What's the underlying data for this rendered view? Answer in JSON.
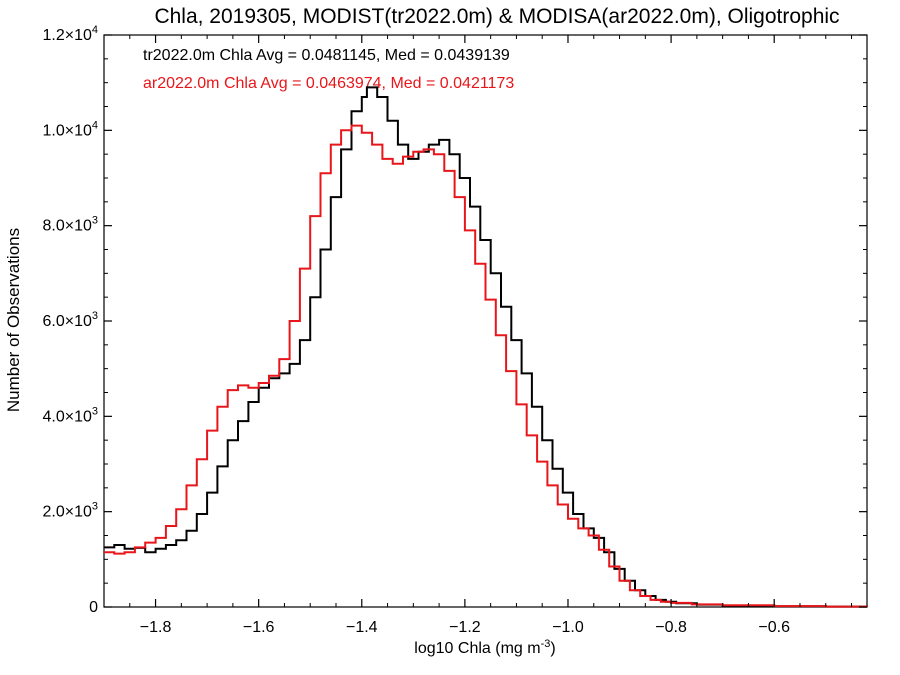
{
  "chart_data": {
    "type": "line",
    "title": "Chla, 2019305, MODIST(tr2022.0m) & MODISA(ar2022.0m), Oligotrophic",
    "xlabel": "log10 Chla (mg m",
    "xlabel_sup": "-3",
    "xlabel_end": ")",
    "ylabel": "Number of Observations",
    "xlim": [
      -1.9,
      -0.42
    ],
    "ylim": [
      0,
      12000
    ],
    "xticks": [
      {
        "value": -1.8,
        "label": "−1.8"
      },
      {
        "value": -1.6,
        "label": "−1.6"
      },
      {
        "value": -1.4,
        "label": "−1.4"
      },
      {
        "value": -1.2,
        "label": "−1.2"
      },
      {
        "value": -1.0,
        "label": "−1.0"
      },
      {
        "value": -0.8,
        "label": "−0.8"
      },
      {
        "value": -0.6,
        "label": "−0.6"
      }
    ],
    "yticks": [
      {
        "value": 0,
        "mant": "0",
        "exp": ""
      },
      {
        "value": 2000,
        "mant": "2.0×10",
        "exp": "3"
      },
      {
        "value": 4000,
        "mant": "4.0×10",
        "exp": "3"
      },
      {
        "value": 6000,
        "mant": "6.0×10",
        "exp": "3"
      },
      {
        "value": 8000,
        "mant": "8.0×10",
        "exp": "3"
      },
      {
        "value": 10000,
        "mant": "1.0×10",
        "exp": "4"
      },
      {
        "value": 12000,
        "mant": "1.2×10",
        "exp": "4"
      }
    ],
    "grid": false,
    "annotations": [
      {
        "text": "tr2022.0m Chla Avg = 0.0481145, Med = 0.0439139",
        "color": "#000000"
      },
      {
        "text": "ar2022.0m Chla Avg = 0.0463974, Med = 0.0421173",
        "color": "#e8161a"
      }
    ],
    "series": [
      {
        "color": "#000000",
        "points": [
          [
            -1.9,
            1250
          ],
          [
            -1.88,
            1300
          ],
          [
            -1.86,
            1220
          ],
          [
            -1.84,
            1240
          ],
          [
            -1.82,
            1150
          ],
          [
            -1.8,
            1220
          ],
          [
            -1.78,
            1300
          ],
          [
            -1.76,
            1400
          ],
          [
            -1.74,
            1600
          ],
          [
            -1.72,
            1950
          ],
          [
            -1.7,
            2400
          ],
          [
            -1.68,
            2950
          ],
          [
            -1.66,
            3500
          ],
          [
            -1.64,
            3900
          ],
          [
            -1.62,
            4300
          ],
          [
            -1.6,
            4600
          ],
          [
            -1.58,
            4800
          ],
          [
            -1.56,
            4900
          ],
          [
            -1.54,
            5100
          ],
          [
            -1.52,
            5600
          ],
          [
            -1.5,
            6500
          ],
          [
            -1.48,
            7500
          ],
          [
            -1.46,
            8600
          ],
          [
            -1.44,
            9600
          ],
          [
            -1.42,
            10400
          ],
          [
            -1.4,
            10700
          ],
          [
            -1.39,
            10900
          ],
          [
            -1.37,
            10700
          ],
          [
            -1.35,
            10200
          ],
          [
            -1.33,
            9700
          ],
          [
            -1.31,
            9400
          ],
          [
            -1.29,
            9550
          ],
          [
            -1.27,
            9700
          ],
          [
            -1.25,
            9800
          ],
          [
            -1.23,
            9500
          ],
          [
            -1.21,
            9000
          ],
          [
            -1.19,
            8400
          ],
          [
            -1.17,
            7700
          ],
          [
            -1.15,
            7000
          ],
          [
            -1.13,
            6300
          ],
          [
            -1.11,
            5600
          ],
          [
            -1.09,
            4900
          ],
          [
            -1.07,
            4200
          ],
          [
            -1.05,
            3500
          ],
          [
            -1.03,
            2900
          ],
          [
            -1.01,
            2400
          ],
          [
            -0.99,
            1950
          ],
          [
            -0.97,
            1650
          ],
          [
            -0.95,
            1450
          ],
          [
            -0.93,
            1150
          ],
          [
            -0.91,
            800
          ],
          [
            -0.89,
            550
          ],
          [
            -0.87,
            350
          ],
          [
            -0.85,
            230
          ],
          [
            -0.83,
            150
          ],
          [
            -0.81,
            110
          ],
          [
            -0.79,
            80
          ],
          [
            -0.75,
            50
          ],
          [
            -0.7,
            30
          ],
          [
            -0.6,
            15
          ],
          [
            -0.5,
            8
          ],
          [
            -0.42,
            5
          ]
        ]
      },
      {
        "color": "#e8161a",
        "points": [
          [
            -1.9,
            1150
          ],
          [
            -1.88,
            1120
          ],
          [
            -1.86,
            1150
          ],
          [
            -1.84,
            1250
          ],
          [
            -1.82,
            1350
          ],
          [
            -1.8,
            1450
          ],
          [
            -1.78,
            1700
          ],
          [
            -1.76,
            2050
          ],
          [
            -1.74,
            2550
          ],
          [
            -1.72,
            3100
          ],
          [
            -1.7,
            3700
          ],
          [
            -1.68,
            4200
          ],
          [
            -1.66,
            4550
          ],
          [
            -1.64,
            4650
          ],
          [
            -1.62,
            4600
          ],
          [
            -1.6,
            4700
          ],
          [
            -1.58,
            4850
          ],
          [
            -1.56,
            5200
          ],
          [
            -1.54,
            6000
          ],
          [
            -1.52,
            7100
          ],
          [
            -1.5,
            8200
          ],
          [
            -1.48,
            9100
          ],
          [
            -1.46,
            9700
          ],
          [
            -1.44,
            10000
          ],
          [
            -1.42,
            10100
          ],
          [
            -1.4,
            9950
          ],
          [
            -1.38,
            9700
          ],
          [
            -1.36,
            9400
          ],
          [
            -1.34,
            9300
          ],
          [
            -1.32,
            9450
          ],
          [
            -1.3,
            9550
          ],
          [
            -1.28,
            9600
          ],
          [
            -1.26,
            9500
          ],
          [
            -1.24,
            9150
          ],
          [
            -1.22,
            8600
          ],
          [
            -1.2,
            7900
          ],
          [
            -1.18,
            7200
          ],
          [
            -1.16,
            6450
          ],
          [
            -1.14,
            5700
          ],
          [
            -1.12,
            4950
          ],
          [
            -1.1,
            4250
          ],
          [
            -1.08,
            3600
          ],
          [
            -1.06,
            3050
          ],
          [
            -1.04,
            2550
          ],
          [
            -1.02,
            2150
          ],
          [
            -1.0,
            1850
          ],
          [
            -0.98,
            1650
          ],
          [
            -0.96,
            1500
          ],
          [
            -0.94,
            1200
          ],
          [
            -0.92,
            850
          ],
          [
            -0.9,
            550
          ],
          [
            -0.88,
            350
          ],
          [
            -0.86,
            230
          ],
          [
            -0.84,
            150
          ],
          [
            -0.82,
            110
          ],
          [
            -0.8,
            85
          ],
          [
            -0.76,
            55
          ],
          [
            -0.7,
            35
          ],
          [
            -0.6,
            18
          ],
          [
            -0.5,
            9
          ],
          [
            -0.42,
            5
          ]
        ]
      }
    ]
  }
}
